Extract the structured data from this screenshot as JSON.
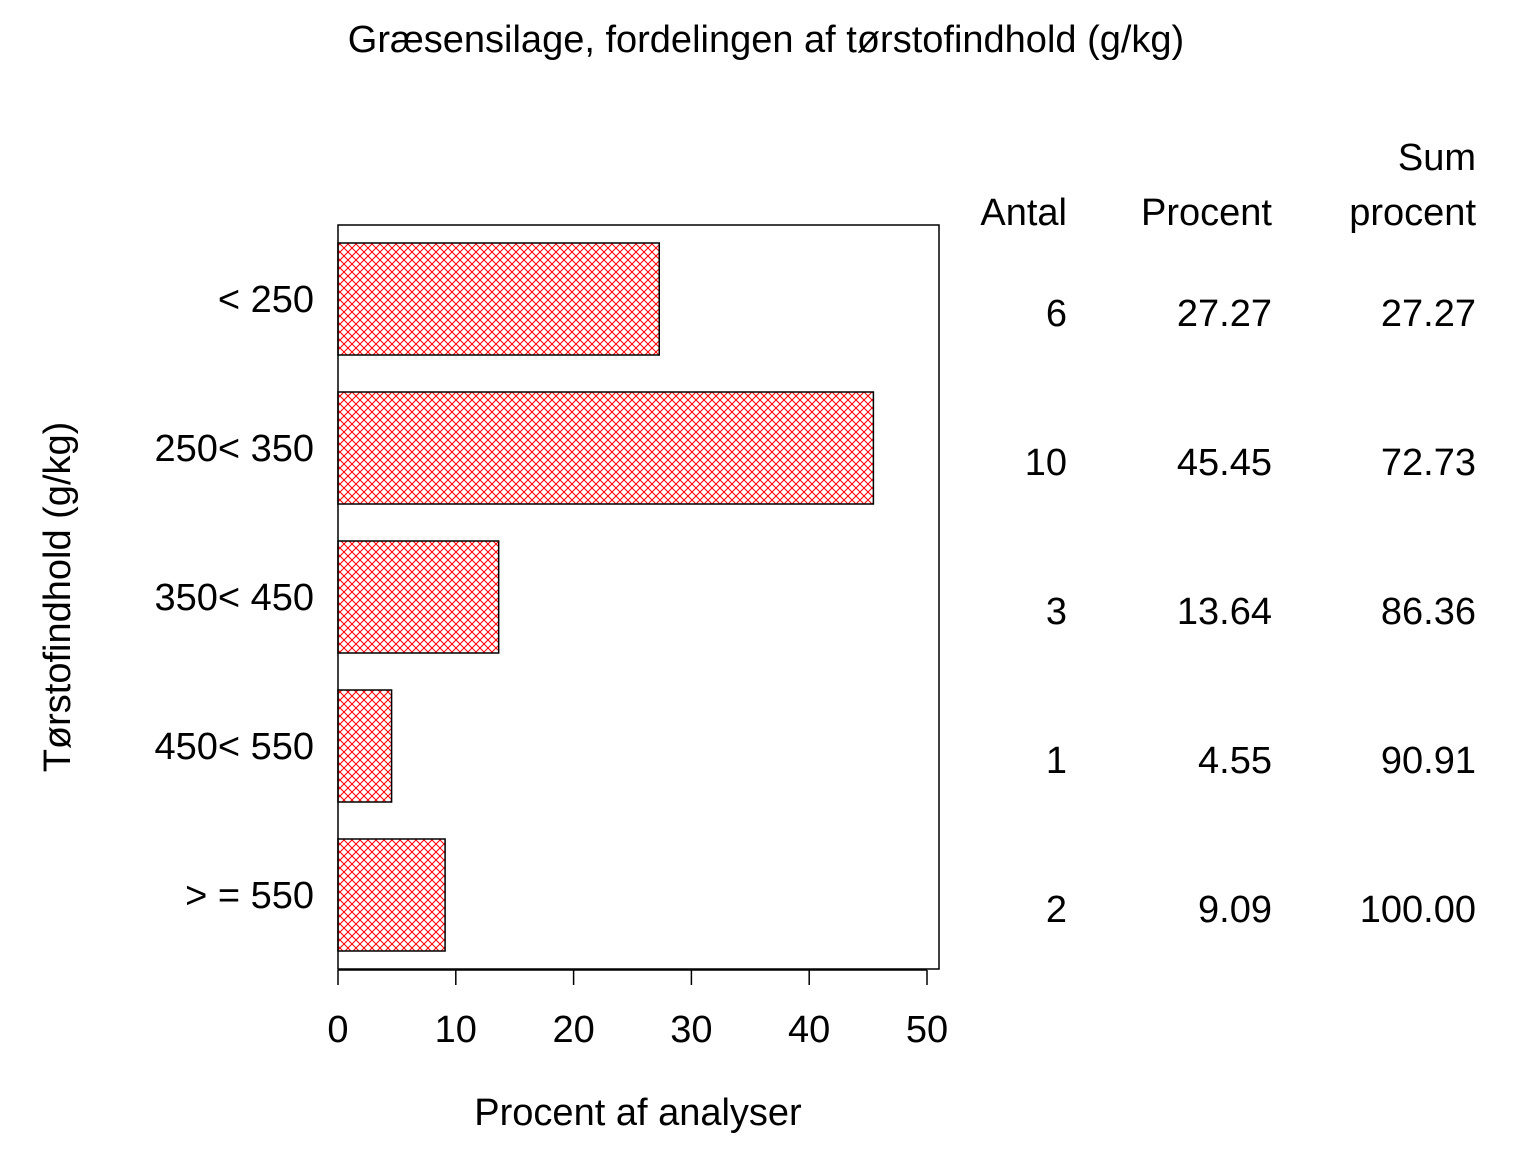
{
  "chart_data": {
    "type": "bar",
    "orientation": "horizontal",
    "title": "Græsensilage, fordelingen af tørstofindhold (g/kg)",
    "xlabel": "Procent af analyser",
    "ylabel": "Tørstofindhold (g/kg)",
    "categories": [
      "< 250",
      "250< 350",
      "350< 450",
      "450< 550",
      "> = 550"
    ],
    "values": [
      27.27,
      45.45,
      13.64,
      4.55,
      9.09
    ],
    "xlim": [
      0,
      51
    ],
    "xticks": [
      "0",
      "10",
      "20",
      "30",
      "40",
      "50"
    ],
    "xtick_values": [
      0,
      10,
      20,
      30,
      40,
      50
    ],
    "grid": false,
    "bar_color": "#ff0000",
    "bar_fill": "crosshatch",
    "table": {
      "headers": [
        [
          "",
          "Antal"
        ],
        [
          "",
          "Procent"
        ],
        [
          "Sum",
          "procent"
        ]
      ],
      "rows": [
        [
          "6",
          "27.27",
          "27.27"
        ],
        [
          "10",
          "45.45",
          "72.73"
        ],
        [
          "3",
          "13.64",
          "86.36"
        ],
        [
          "1",
          "4.55",
          "90.91"
        ],
        [
          "2",
          "9.09",
          "100.00"
        ]
      ]
    }
  }
}
